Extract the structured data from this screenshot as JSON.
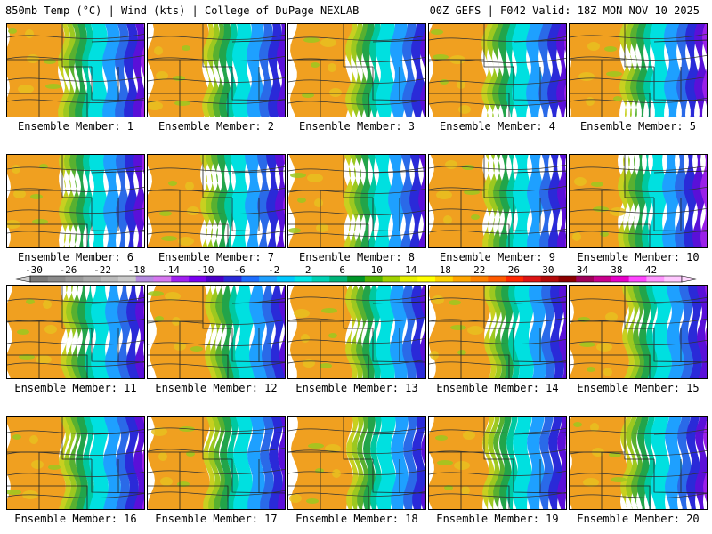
{
  "header": {
    "left": "850mb Temp (°C) | Wind (kts) | College of DuPage NEXLAB",
    "right": "00Z GEFS | F042 Valid: 18Z MON NOV 10 2025"
  },
  "members": [
    "Ensemble Member: 1",
    "Ensemble Member: 2",
    "Ensemble Member: 3",
    "Ensemble Member: 4",
    "Ensemble Member: 5",
    "Ensemble Member: 6",
    "Ensemble Member: 7",
    "Ensemble Member: 8",
    "Ensemble Member: 9",
    "Ensemble Member: 10",
    "Ensemble Member: 11",
    "Ensemble Member: 12",
    "Ensemble Member: 13",
    "Ensemble Member: 14",
    "Ensemble Member: 15",
    "Ensemble Member: 16",
    "Ensemble Member: 17",
    "Ensemble Member: 18",
    "Ensemble Member: 19",
    "Ensemble Member: 20"
  ],
  "colorbar": {
    "labels": [
      "-30",
      "-26",
      "-22",
      "-18",
      "-14",
      "-10",
      "-6",
      "-2",
      "2",
      "6",
      "10",
      "14",
      "18",
      "22",
      "26",
      "30",
      "34",
      "38",
      "42"
    ],
    "colors": [
      "#7a7a7a",
      "#8a8a8a",
      "#9a9a9a",
      "#aaaaaa",
      "#bababa",
      "#cacaca",
      "#b68be0",
      "#d678f0",
      "#a020f0",
      "#7a00f0",
      "#4a00c8",
      "#2a2ad8",
      "#1e6eff",
      "#1ea0ff",
      "#00c8ff",
      "#00e6e6",
      "#00d2b4",
      "#00b478",
      "#009628",
      "#55b400",
      "#a0d200",
      "#e6f000",
      "#ffff00",
      "#ffd200",
      "#ffa500",
      "#ff8200",
      "#ff5a00",
      "#ff2800",
      "#dc1414",
      "#b40a0a",
      "#8c0000",
      "#a0005a",
      "#c8008c",
      "#e600c8",
      "#ff46ff",
      "#ff96ff",
      "#ffc8ff"
    ]
  }
}
